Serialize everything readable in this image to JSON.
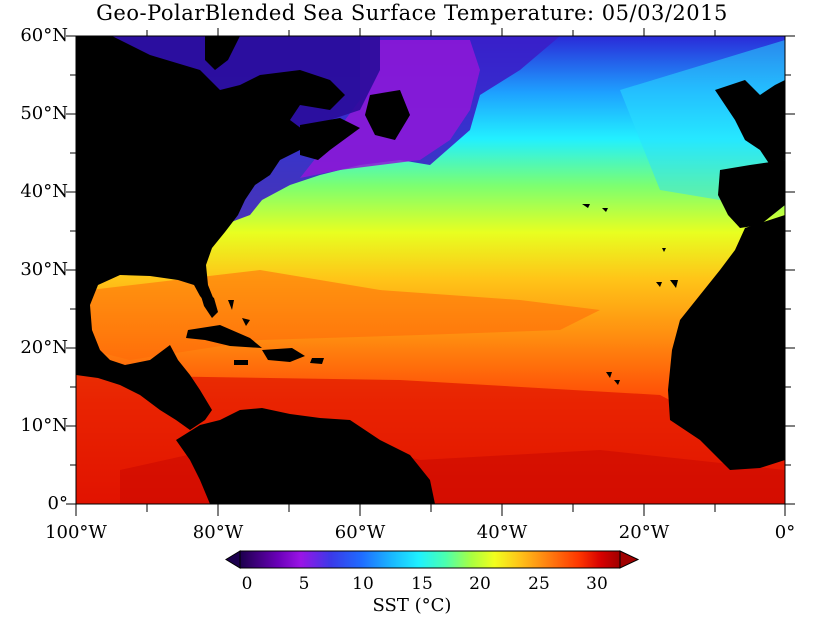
{
  "title": "Geo-PolarBlended Sea Surface Temperature: 05/03/2015",
  "map": {
    "extent": {
      "lon_min": -100,
      "lon_max": 0,
      "lat_min": 0,
      "lat_max": 60
    },
    "land_color": "#000000",
    "lat_labels": [
      "60°N",
      "50°N",
      "40°N",
      "30°N",
      "20°N",
      "10°N",
      "0°"
    ],
    "lon_labels": [
      "100°W",
      "80°W",
      "60°W",
      "40°W",
      "20°W",
      "0°"
    ]
  },
  "colorbar": {
    "label": "SST (°C)",
    "ticks": [
      "0",
      "5",
      "10",
      "15",
      "20",
      "25",
      "30"
    ],
    "range": [
      0,
      32
    ],
    "colors": [
      "#1c004d",
      "#3a0078",
      "#6a00b8",
      "#9a14e6",
      "#4433e8",
      "#1f5cff",
      "#1a9bff",
      "#1ee8ff",
      "#2affd0",
      "#6cff80",
      "#b6ff3c",
      "#f2ff1e",
      "#ffd11a",
      "#ff9a12",
      "#ff5a0a",
      "#ff2a00",
      "#d60000",
      "#a00000"
    ]
  }
}
